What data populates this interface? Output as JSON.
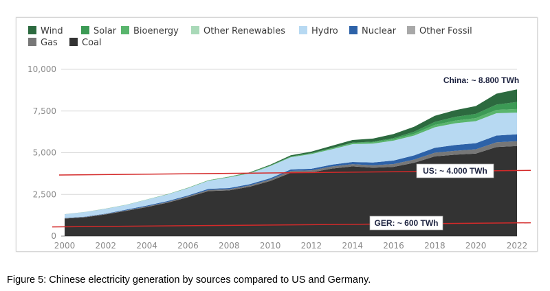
{
  "chart_data": {
    "type": "area",
    "stacked": true,
    "title": "",
    "xlabel": "",
    "ylabel": "",
    "x": [
      2000,
      2001,
      2002,
      2003,
      2004,
      2005,
      2006,
      2007,
      2008,
      2009,
      2010,
      2011,
      2012,
      2013,
      2014,
      2015,
      2016,
      2017,
      2018,
      2019,
      2020,
      2021,
      2022
    ],
    "xticks": [
      "2000",
      "2002",
      "2004",
      "2006",
      "2008",
      "2010",
      "2012",
      "2014",
      "2016",
      "2018",
      "2020",
      "2022"
    ],
    "yticks": [
      "0",
      "2,500",
      "5,000",
      "7,500",
      "10,000"
    ],
    "ylim": [
      0,
      10000
    ],
    "grid": true,
    "legend_position": "top-left",
    "series": [
      {
        "name": "Coal",
        "color": "#333333",
        "values": [
          1050,
          1130,
          1300,
          1520,
          1740,
          2000,
          2330,
          2700,
          2740,
          2960,
          3300,
          3800,
          3820,
          4050,
          4180,
          4100,
          4150,
          4400,
          4780,
          4880,
          4950,
          5340,
          5400
        ]
      },
      {
        "name": "Gas",
        "color": "#777777",
        "values": [
          20,
          20,
          25,
          30,
          40,
          45,
          55,
          70,
          75,
          80,
          95,
          110,
          120,
          125,
          130,
          145,
          170,
          190,
          220,
          235,
          255,
          280,
          290
        ]
      },
      {
        "name": "Other Fossil",
        "color": "#a8a8a8",
        "values": [
          0,
          0,
          0,
          0,
          0,
          0,
          0,
          0,
          0,
          0,
          0,
          0,
          0,
          0,
          0,
          0,
          0,
          0,
          0,
          0,
          0,
          0,
          0
        ]
      },
      {
        "name": "Nuclear",
        "color": "#2d62a8",
        "values": [
          15,
          18,
          25,
          40,
          50,
          53,
          55,
          62,
          68,
          70,
          75,
          87,
          98,
          112,
          133,
          170,
          213,
          248,
          295,
          348,
          366,
          407,
          418
        ]
      },
      {
        "name": "Hydro",
        "color": "#b7d9f2",
        "values": [
          222,
          278,
          288,
          284,
          356,
          398,
          436,
          490,
          640,
          650,
          725,
          730,
          880,
          920,
          1070,
          1130,
          1190,
          1190,
          1230,
          1300,
          1320,
          1340,
          1300
        ]
      },
      {
        "name": "Other Renewables",
        "color": "#a9d9b8",
        "values": [
          0,
          0,
          0,
          0,
          0,
          0,
          0,
          0,
          0,
          0,
          0,
          0,
          0,
          0,
          0,
          0,
          0,
          0,
          0,
          0,
          0,
          0,
          0
        ]
      },
      {
        "name": "Bioenergy",
        "color": "#59b56d",
        "values": [
          2,
          3,
          5,
          7,
          10,
          15,
          20,
          25,
          30,
          35,
          40,
          45,
          50,
          60,
          70,
          80,
          90,
          110,
          140,
          160,
          180,
          200,
          210
        ]
      },
      {
        "name": "Solar",
        "color": "#3c9a55",
        "values": [
          0,
          0,
          0,
          0,
          0,
          0,
          0,
          0,
          0,
          0,
          1,
          3,
          4,
          9,
          23,
          40,
          67,
          120,
          180,
          225,
          260,
          320,
          420
        ]
      },
      {
        "name": "Wind",
        "color": "#2c6a3f",
        "values": [
          1,
          1,
          2,
          2,
          3,
          3,
          4,
          6,
          13,
          28,
          45,
          70,
          95,
          140,
          155,
          185,
          240,
          300,
          365,
          405,
          465,
          650,
          760
        ]
      }
    ],
    "legend": [
      "Wind",
      "Solar",
      "Bioenergy",
      "Other Renewables",
      "Hydro",
      "Nuclear",
      "Other Fossil",
      "Gas",
      "Coal"
    ],
    "annotations": [
      {
        "text": "China: ~ 8.800 TWh"
      },
      {
        "text": "US: ~ 4.000 TWh",
        "value": 4000
      },
      {
        "text": "GER: ~ 600 TWh",
        "value": 600
      }
    ],
    "reference_line_color": "#d42a2a"
  },
  "caption": "Figure 5: Chinese electricity generation by sources compared to US and Germany."
}
